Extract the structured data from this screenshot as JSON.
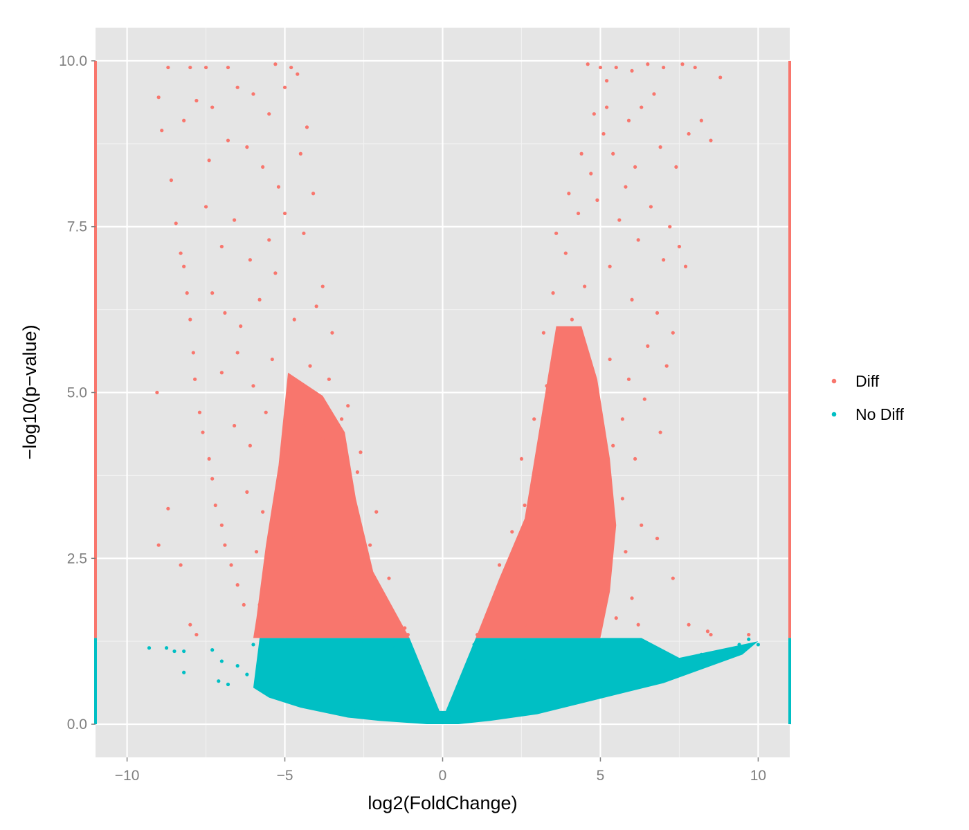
{
  "chart_data": {
    "type": "scatter",
    "title": "",
    "xlabel": "log2(FoldChange)",
    "ylabel": "−log10(p−value)",
    "xlim": [
      -11,
      11
    ],
    "ylim": [
      -0.5,
      10.5
    ],
    "x_ticks": [
      {
        "value": -10,
        "label": "−10"
      },
      {
        "value": -5,
        "label": "−5"
      },
      {
        "value": 0,
        "label": "0"
      },
      {
        "value": 5,
        "label": "5"
      },
      {
        "value": 10,
        "label": "10"
      }
    ],
    "y_ticks": [
      {
        "value": 0,
        "label": "0.0"
      },
      {
        "value": 2.5,
        "label": "2.5"
      },
      {
        "value": 5,
        "label": "5.0"
      },
      {
        "value": 7.5,
        "label": "7.5"
      },
      {
        "value": 10,
        "label": "10.0"
      }
    ],
    "grid": true,
    "legend_position": "right",
    "significance_threshold": 1.3,
    "series": [
      {
        "name": "Diff",
        "color": "#F8766D",
        "points": [
          [
            -9.0,
            9.45
          ],
          [
            -8.9,
            8.95
          ],
          [
            -8.6,
            8.2
          ],
          [
            -8.45,
            7.55
          ],
          [
            -8.3,
            7.1
          ],
          [
            -8.2,
            6.9
          ],
          [
            -8.1,
            6.5
          ],
          [
            -8.0,
            6.1
          ],
          [
            -7.9,
            5.6
          ],
          [
            -7.85,
            5.2
          ],
          [
            -7.7,
            4.7
          ],
          [
            -7.6,
            4.4
          ],
          [
            -7.4,
            4.0
          ],
          [
            -7.3,
            3.7
          ],
          [
            -7.2,
            3.3
          ],
          [
            -7.0,
            3.0
          ],
          [
            -6.9,
            2.7
          ],
          [
            -6.7,
            2.4
          ],
          [
            -6.5,
            2.1
          ],
          [
            -6.3,
            1.8
          ],
          [
            -9.05,
            5.0
          ],
          [
            -8.7,
            3.25
          ],
          [
            -9.0,
            2.7
          ],
          [
            -8.3,
            2.4
          ],
          [
            -8.0,
            1.5
          ],
          [
            -7.8,
            1.35
          ],
          [
            -8.7,
            9.9
          ],
          [
            -8.0,
            9.9
          ],
          [
            -7.5,
            9.9
          ],
          [
            -6.8,
            9.9
          ],
          [
            -5.3,
            9.95
          ],
          [
            -4.8,
            9.9
          ],
          [
            -8.2,
            9.1
          ],
          [
            -7.8,
            9.4
          ],
          [
            -7.3,
            9.3
          ],
          [
            -6.5,
            9.6
          ],
          [
            -6.0,
            9.5
          ],
          [
            -5.5,
            9.2
          ],
          [
            -5.0,
            9.6
          ],
          [
            -4.6,
            9.8
          ],
          [
            -4.3,
            9.0
          ],
          [
            -7.4,
            8.5
          ],
          [
            -6.8,
            8.8
          ],
          [
            -6.2,
            8.7
          ],
          [
            -5.7,
            8.4
          ],
          [
            -5.2,
            8.1
          ],
          [
            -4.5,
            8.6
          ],
          [
            -4.1,
            8.0
          ],
          [
            -7.5,
            7.8
          ],
          [
            -7.0,
            7.2
          ],
          [
            -6.6,
            7.6
          ],
          [
            -6.1,
            7.0
          ],
          [
            -5.5,
            7.3
          ],
          [
            -5.0,
            7.7
          ],
          [
            -4.4,
            7.4
          ],
          [
            -3.8,
            6.6
          ],
          [
            -7.3,
            6.5
          ],
          [
            -6.9,
            6.2
          ],
          [
            -6.4,
            6.0
          ],
          [
            -5.8,
            6.4
          ],
          [
            -5.3,
            6.8
          ],
          [
            -4.7,
            6.1
          ],
          [
            -4.0,
            6.3
          ],
          [
            -3.5,
            5.9
          ],
          [
            -7.0,
            5.3
          ],
          [
            -6.5,
            5.6
          ],
          [
            -6.0,
            5.1
          ],
          [
            -5.4,
            5.5
          ],
          [
            -4.8,
            5.0
          ],
          [
            -4.2,
            5.4
          ],
          [
            -3.6,
            5.2
          ],
          [
            -3.0,
            4.8
          ],
          [
            -6.6,
            4.5
          ],
          [
            -6.1,
            4.2
          ],
          [
            -5.6,
            4.7
          ],
          [
            -5.0,
            4.1
          ],
          [
            -4.4,
            4.5
          ],
          [
            -3.8,
            4.3
          ],
          [
            -3.2,
            4.6
          ],
          [
            -2.6,
            4.1
          ],
          [
            -6.2,
            3.5
          ],
          [
            -5.7,
            3.2
          ],
          [
            -5.1,
            3.7
          ],
          [
            -4.5,
            3.3
          ],
          [
            -3.9,
            3.6
          ],
          [
            -3.3,
            3.4
          ],
          [
            -2.7,
            3.8
          ],
          [
            -2.1,
            3.2
          ],
          [
            -5.9,
            2.6
          ],
          [
            -5.3,
            2.3
          ],
          [
            -4.7,
            2.8
          ],
          [
            -4.1,
            2.5
          ],
          [
            -3.5,
            2.9
          ],
          [
            -2.9,
            2.4
          ],
          [
            -2.3,
            2.7
          ],
          [
            -1.7,
            2.2
          ],
          [
            -5.8,
            1.8
          ],
          [
            -5.2,
            1.6
          ],
          [
            -4.6,
            1.9
          ],
          [
            -4.0,
            1.7
          ],
          [
            -3.4,
            2.0
          ],
          [
            -2.8,
            1.6
          ],
          [
            -2.2,
            1.9
          ],
          [
            -1.6,
            1.7
          ],
          [
            -1.2,
            1.45
          ],
          [
            -5.9,
            1.4
          ],
          [
            -5.0,
            1.35
          ],
          [
            -4.0,
            1.4
          ],
          [
            -3.0,
            1.35
          ],
          [
            -2.0,
            1.4
          ],
          [
            -1.1,
            1.35
          ],
          [
            1.1,
            1.35
          ],
          [
            1.5,
            1.6
          ],
          [
            1.9,
            1.9
          ],
          [
            2.3,
            2.2
          ],
          [
            2.7,
            2.5
          ],
          [
            3.1,
            2.8
          ],
          [
            1.8,
            2.4
          ],
          [
            2.2,
            2.9
          ],
          [
            2.6,
            3.3
          ],
          [
            3.0,
            3.7
          ],
          [
            3.4,
            4.1
          ],
          [
            3.8,
            4.5
          ],
          [
            2.5,
            4.0
          ],
          [
            2.9,
            4.6
          ],
          [
            3.3,
            5.1
          ],
          [
            3.7,
            5.6
          ],
          [
            4.1,
            6.1
          ],
          [
            4.5,
            6.6
          ],
          [
            3.2,
            5.9
          ],
          [
            3.5,
            6.5
          ],
          [
            3.9,
            7.1
          ],
          [
            4.3,
            7.7
          ],
          [
            4.7,
            8.3
          ],
          [
            5.1,
            8.9
          ],
          [
            3.6,
            7.4
          ],
          [
            4.0,
            8.0
          ],
          [
            4.4,
            8.6
          ],
          [
            4.8,
            9.2
          ],
          [
            5.2,
            9.7
          ],
          [
            4.6,
            9.95
          ],
          [
            5.0,
            9.9
          ],
          [
            5.5,
            9.9
          ],
          [
            6.0,
            9.85
          ],
          [
            6.5,
            9.95
          ],
          [
            7.0,
            9.9
          ],
          [
            7.6,
            9.95
          ],
          [
            8.0,
            9.9
          ],
          [
            8.8,
            9.75
          ],
          [
            8.2,
            9.1
          ],
          [
            7.8,
            8.9
          ],
          [
            8.5,
            8.8
          ],
          [
            7.4,
            8.4
          ],
          [
            6.9,
            8.7
          ],
          [
            6.3,
            9.3
          ],
          [
            5.8,
            8.1
          ],
          [
            6.6,
            7.8
          ],
          [
            7.2,
            7.5
          ],
          [
            7.5,
            7.2
          ],
          [
            7.7,
            6.9
          ],
          [
            7.0,
            7.0
          ],
          [
            6.2,
            7.3
          ],
          [
            5.6,
            7.6
          ],
          [
            5.3,
            6.9
          ],
          [
            6.0,
            6.4
          ],
          [
            6.8,
            6.2
          ],
          [
            7.3,
            5.9
          ],
          [
            7.1,
            5.4
          ],
          [
            6.5,
            5.7
          ],
          [
            5.9,
            5.2
          ],
          [
            5.3,
            5.5
          ],
          [
            4.8,
            5.0
          ],
          [
            5.7,
            4.6
          ],
          [
            6.4,
            4.9
          ],
          [
            6.9,
            4.4
          ],
          [
            6.1,
            4.0
          ],
          [
            5.4,
            4.2
          ],
          [
            4.9,
            3.8
          ],
          [
            4.3,
            3.5
          ],
          [
            5.0,
            3.2
          ],
          [
            5.7,
            3.4
          ],
          [
            6.3,
            3.0
          ],
          [
            5.8,
            2.6
          ],
          [
            5.1,
            2.4
          ],
          [
            4.5,
            2.7
          ],
          [
            3.9,
            3.0
          ],
          [
            3.5,
            2.3
          ],
          [
            4.2,
            2.0
          ],
          [
            4.9,
            1.8
          ],
          [
            5.5,
            1.6
          ],
          [
            6.2,
            1.5
          ],
          [
            3.2,
            1.7
          ],
          [
            2.6,
            1.5
          ],
          [
            2.0,
            1.4
          ],
          [
            6.8,
            2.8
          ],
          [
            7.3,
            2.2
          ],
          [
            7.8,
            1.5
          ],
          [
            8.4,
            1.4
          ],
          [
            8.5,
            1.35
          ],
          [
            9.7,
            1.35
          ],
          [
            6.0,
            1.9
          ],
          [
            5.2,
            9.3
          ],
          [
            5.9,
            9.1
          ],
          [
            6.7,
            9.5
          ],
          [
            5.4,
            8.6
          ],
          [
            6.1,
            8.4
          ],
          [
            4.9,
            7.9
          ]
        ]
      },
      {
        "name": "No Diff",
        "color": "#00BFC4",
        "points": [
          [
            -9.3,
            1.15
          ],
          [
            -8.75,
            1.15
          ],
          [
            -8.5,
            1.1
          ],
          [
            -8.2,
            1.1
          ],
          [
            -8.2,
            0.78
          ],
          [
            -7.3,
            1.12
          ],
          [
            -7.0,
            0.95
          ],
          [
            -7.1,
            0.65
          ],
          [
            -6.8,
            0.6
          ],
          [
            -6.5,
            0.88
          ],
          [
            -6.2,
            0.75
          ],
          [
            -6.0,
            1.2
          ],
          [
            -5.8,
            0.55
          ],
          [
            -5.6,
            1.0
          ],
          [
            -5.3,
            0.45
          ],
          [
            -5.0,
            1.25
          ],
          [
            -4.8,
            0.85
          ],
          [
            -4.5,
            0.4
          ],
          [
            -4.3,
            1.1
          ],
          [
            -4.0,
            0.7
          ],
          [
            -3.7,
            0.3
          ],
          [
            -3.5,
            1.2
          ],
          [
            -3.3,
            0.9
          ],
          [
            -3.0,
            0.5
          ],
          [
            -2.8,
            0.2
          ],
          [
            -2.5,
            1.25
          ],
          [
            -2.3,
            0.8
          ],
          [
            -2.0,
            0.4
          ],
          [
            -1.8,
            0.1
          ],
          [
            -1.5,
            1.15
          ],
          [
            -1.3,
            0.7
          ],
          [
            -1.0,
            0.3
          ],
          [
            -0.8,
            0.05
          ],
          [
            -0.6,
            0.5
          ],
          [
            -0.4,
            0.25
          ],
          [
            -0.2,
            0.1
          ],
          [
            0.0,
            0.15
          ],
          [
            0.2,
            0.1
          ],
          [
            0.4,
            0.3
          ],
          [
            0.6,
            0.5
          ],
          [
            0.8,
            0.75
          ],
          [
            1.0,
            1.2
          ],
          [
            1.2,
            0.4
          ],
          [
            1.5,
            0.9
          ],
          [
            1.8,
            1.25
          ],
          [
            2.0,
            0.2
          ],
          [
            2.3,
            0.6
          ],
          [
            2.6,
            1.0
          ],
          [
            3.0,
            0.3
          ],
          [
            3.3,
            0.8
          ],
          [
            3.6,
            1.2
          ],
          [
            4.0,
            0.45
          ],
          [
            4.3,
            0.9
          ],
          [
            4.7,
            1.25
          ],
          [
            5.0,
            0.55
          ],
          [
            5.4,
            1.0
          ],
          [
            5.8,
            0.65
          ],
          [
            6.2,
            1.15
          ],
          [
            6.5,
            0.75
          ],
          [
            7.0,
            0.85
          ],
          [
            7.4,
            0.95
          ],
          [
            7.8,
            0.9
          ],
          [
            8.2,
            1.05
          ],
          [
            8.6,
            1.08
          ],
          [
            9.0,
            1.1
          ],
          [
            9.4,
            1.2
          ],
          [
            9.7,
            1.28
          ],
          [
            10.0,
            1.2
          ],
          [
            8.8,
            1.0
          ],
          [
            8.0,
            0.95
          ],
          [
            7.2,
            0.8
          ],
          [
            6.0,
            0.6
          ]
        ]
      }
    ]
  }
}
